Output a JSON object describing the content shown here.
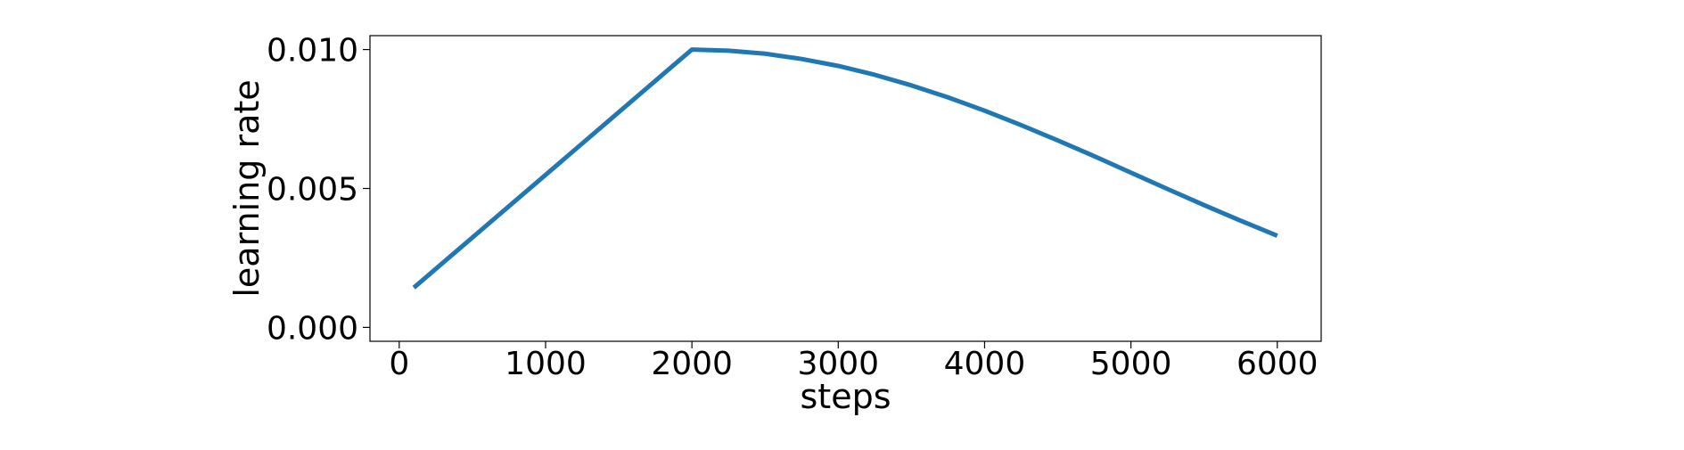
{
  "chart_data": {
    "type": "line",
    "title": "",
    "xlabel": "steps",
    "ylabel": "learning rate",
    "xlim": [
      -200,
      6300
    ],
    "ylim": [
      -0.0005,
      0.0105
    ],
    "xticks": [
      0,
      1000,
      2000,
      3000,
      4000,
      5000,
      6000
    ],
    "xtick_labels": [
      "0",
      "1000",
      "2000",
      "3000",
      "4000",
      "5000",
      "6000"
    ],
    "yticks": [
      0.0,
      0.005,
      0.01
    ],
    "ytick_labels": [
      "0.000",
      "0.005",
      "0.010"
    ],
    "grid": false,
    "legend": "none",
    "series": [
      {
        "color": "#1f77b4",
        "x": [
          100,
          2000,
          2250,
          2500,
          2750,
          3000,
          3250,
          3500,
          3750,
          4000,
          4250,
          4500,
          4750,
          5000,
          5250,
          5500,
          5750,
          6000
        ],
        "y": [
          0.00143,
          0.01,
          0.00996,
          0.00985,
          0.00966,
          0.00941,
          0.00909,
          0.00871,
          0.00828,
          0.0078,
          0.00728,
          0.00673,
          0.00616,
          0.00557,
          0.00498,
          0.0044,
          0.00384,
          0.0033
        ]
      }
    ]
  }
}
